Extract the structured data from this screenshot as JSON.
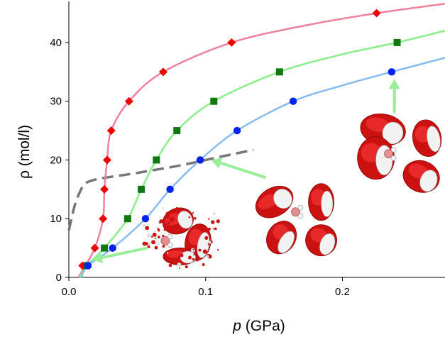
{
  "chart_data": {
    "type": "scatter",
    "title": "",
    "xlabel_italic": "p",
    "xlabel_unit": "(GPa)",
    "ylabel": "ρ (mol/l)",
    "xlim": [
      0,
      0.275
    ],
    "ylim": [
      0,
      47
    ],
    "xticks": [
      0.0,
      0.1,
      0.2
    ],
    "xtick_labels": [
      "0.0",
      "0.1",
      "0.2"
    ],
    "yticks": [
      0,
      10,
      20,
      30,
      40
    ],
    "ytick_labels": [
      "0",
      "10",
      "20",
      "30",
      "40"
    ],
    "grid": false,
    "legend": "none",
    "series": [
      {
        "marker": "diamond",
        "color": "#ee0000",
        "line_color": "#f0809c",
        "points": [
          [
            0.01,
            2
          ],
          [
            0.019,
            5
          ],
          [
            0.025,
            10
          ],
          [
            0.026,
            15
          ],
          [
            0.028,
            20
          ],
          [
            0.031,
            25
          ],
          [
            0.044,
            30
          ],
          [
            0.069,
            35
          ],
          [
            0.119,
            40
          ],
          [
            0.225,
            45
          ]
        ],
        "curve": [
          [
            0.007,
            0
          ],
          [
            0.012,
            2
          ],
          [
            0.019,
            5
          ],
          [
            0.025,
            10
          ],
          [
            0.026,
            15
          ],
          [
            0.028,
            20
          ],
          [
            0.031,
            25
          ],
          [
            0.044,
            30
          ],
          [
            0.069,
            35
          ],
          [
            0.119,
            40
          ],
          [
            0.175,
            43
          ],
          [
            0.225,
            45
          ],
          [
            0.275,
            46.6
          ]
        ]
      },
      {
        "marker": "square",
        "color": "#117711",
        "line_color": "#88ee88",
        "points": [
          [
            0.013,
            2
          ],
          [
            0.026,
            5
          ],
          [
            0.043,
            10
          ],
          [
            0.053,
            15
          ],
          [
            0.064,
            20
          ],
          [
            0.079,
            25
          ],
          [
            0.106,
            30
          ],
          [
            0.154,
            35
          ],
          [
            0.24,
            40
          ]
        ],
        "curve": [
          [
            0.008,
            0
          ],
          [
            0.013,
            2
          ],
          [
            0.026,
            5
          ],
          [
            0.043,
            10
          ],
          [
            0.053,
            15
          ],
          [
            0.064,
            20
          ],
          [
            0.079,
            25
          ],
          [
            0.106,
            30
          ],
          [
            0.154,
            35
          ],
          [
            0.2,
            38
          ],
          [
            0.24,
            40
          ],
          [
            0.275,
            42
          ]
        ]
      },
      {
        "marker": "circle",
        "color": "#0022ee",
        "line_color": "#88bbee",
        "points": [
          [
            0.014,
            2
          ],
          [
            0.032,
            5
          ],
          [
            0.056,
            10
          ],
          [
            0.074,
            15
          ],
          [
            0.096,
            20
          ],
          [
            0.123,
            25
          ],
          [
            0.164,
            30
          ],
          [
            0.236,
            35
          ]
        ],
        "curve": [
          [
            0.009,
            0
          ],
          [
            0.014,
            2
          ],
          [
            0.032,
            5
          ],
          [
            0.056,
            10
          ],
          [
            0.074,
            15
          ],
          [
            0.096,
            20
          ],
          [
            0.123,
            25
          ],
          [
            0.164,
            30
          ],
          [
            0.2,
            32.7
          ],
          [
            0.236,
            35
          ],
          [
            0.275,
            37.4
          ]
        ]
      }
    ],
    "dashed_curve": {
      "color": "#777777",
      "points": [
        [
          0.0,
          8
        ],
        [
          0.004,
          12
        ],
        [
          0.008,
          14.5
        ],
        [
          0.012,
          16
        ],
        [
          0.02,
          16.7
        ],
        [
          0.03,
          17.1
        ],
        [
          0.045,
          17.6
        ],
        [
          0.06,
          18.2
        ],
        [
          0.08,
          19
        ],
        [
          0.1,
          20
        ],
        [
          0.12,
          21
        ],
        [
          0.135,
          21.7
        ]
      ]
    },
    "arrows": [
      {
        "color": "#99ee99",
        "from": [
          0.057,
          5
        ],
        "to": [
          0.017,
          3
        ]
      },
      {
        "color": "#99ee99",
        "from": [
          0.144,
          17
        ],
        "to": [
          0.104,
          20
        ]
      },
      {
        "color": "#99ee99",
        "from": [
          0.238,
          28
        ],
        "to": [
          0.238,
          33.8
        ]
      }
    ],
    "molecule_insets": [
      {
        "name": "inset-low-density",
        "center": [
          0.084,
          7.2
        ]
      },
      {
        "name": "inset-mid-density",
        "center": [
          0.171,
          12.6
        ]
      },
      {
        "name": "inset-high-density",
        "center": [
          0.239,
          22.5
        ]
      }
    ]
  }
}
